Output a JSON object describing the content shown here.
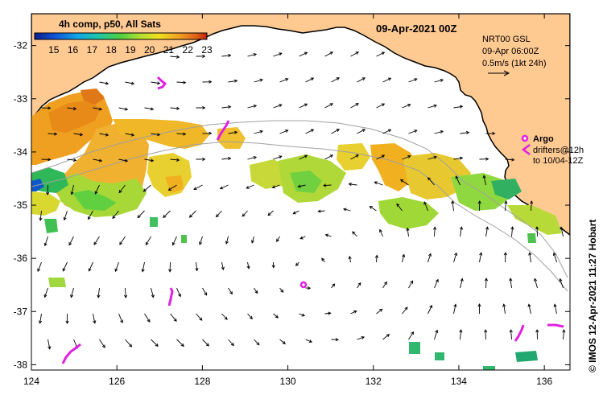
{
  "header": {
    "date": "09-Apr-2021 00Z"
  },
  "colorbar": {
    "title": "4h comp, p50, All Sats",
    "ticks": [
      "15",
      "16",
      "17",
      "18",
      "19",
      "20",
      "21",
      "22",
      "23"
    ],
    "min": 14,
    "max": 23
  },
  "current_info": {
    "line1": "NRT00 GSL",
    "line2": "09-Apr 06:00Z",
    "line3": "0.5m/s (1kt 24h)"
  },
  "argo_legend": {
    "title": "Argo",
    "line1": "drifters@12h",
    "line2": "to 10/04-12Z"
  },
  "credit": "© IMOS 12-Apr-2021 11:27 Hobart",
  "axes": {
    "lon_range": [
      124,
      136.6
    ],
    "lat_range": [
      -38.1,
      -31.4
    ],
    "x_ticks": [
      "124",
      "126",
      "128",
      "130",
      "132",
      "134",
      "136"
    ],
    "y_ticks": [
      "-32",
      "-33",
      "-34",
      "-35",
      "-36",
      "-37",
      "-38"
    ]
  },
  "colors": {
    "land": "#FFC992",
    "argo": "#E020E0",
    "shelf_line": "#A0A0A0",
    "arrow": "#000000",
    "sst_cool": "#20A060",
    "sst_warm": "#F0A020"
  }
}
